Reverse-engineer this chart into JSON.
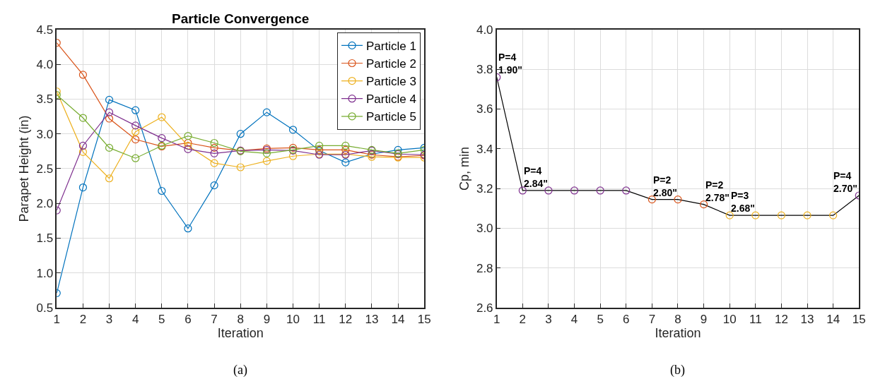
{
  "chart_data": [
    {
      "type": "line",
      "title": "Particle Convergence",
      "xlabel": "Iteration",
      "ylabel": "Parapet Height (in)",
      "x": [
        1,
        2,
        3,
        4,
        5,
        6,
        7,
        8,
        9,
        10,
        11,
        12,
        13,
        14,
        15
      ],
      "series": [
        {
          "name": "Particle 1",
          "color": "#0072bd",
          "values": [
            0.71,
            2.23,
            3.49,
            3.34,
            2.18,
            1.64,
            2.26,
            3.0,
            3.31,
            3.06,
            2.76,
            2.59,
            2.71,
            2.77,
            2.8
          ]
        },
        {
          "name": "Particle 2",
          "color": "#d95319",
          "values": [
            4.31,
            3.85,
            3.22,
            2.92,
            2.82,
            2.87,
            2.8,
            2.76,
            2.79,
            2.8,
            2.77,
            2.77,
            2.7,
            2.67,
            2.69
          ]
        },
        {
          "name": "Particle 3",
          "color": "#edb120",
          "values": [
            3.61,
            2.74,
            2.36,
            3.03,
            3.24,
            2.83,
            2.58,
            2.52,
            2.61,
            2.68,
            2.71,
            2.71,
            2.67,
            2.66,
            2.66
          ]
        },
        {
          "name": "Particle 4",
          "color": "#7e2f8e",
          "values": [
            1.9,
            2.83,
            3.31,
            3.12,
            2.94,
            2.78,
            2.72,
            2.76,
            2.77,
            2.76,
            2.7,
            2.7,
            2.76,
            2.71,
            2.7
          ]
        },
        {
          "name": "Particle 5",
          "color": "#77ac30",
          "values": [
            3.56,
            3.23,
            2.8,
            2.65,
            2.83,
            2.97,
            2.87,
            2.75,
            2.72,
            2.77,
            2.83,
            2.83,
            2.77,
            2.72,
            2.77
          ]
        }
      ],
      "xlim": [
        1,
        15
      ],
      "xticks": [
        1,
        2,
        3,
        4,
        5,
        6,
        7,
        8,
        9,
        10,
        11,
        12,
        13,
        14,
        15
      ],
      "ylim": [
        0.5,
        4.5
      ],
      "yticks": [
        0.5,
        {
          "value": 1,
          "label": "1.0"
        },
        1.5,
        {
          "value": 2,
          "label": "2.0"
        },
        2.5,
        {
          "value": 3,
          "label": "3.0"
        },
        3.5,
        {
          "value": 4,
          "label": "4.0"
        },
        4.5
      ],
      "grid": true,
      "legend": "top right",
      "marker": "circle",
      "line_style": "solid",
      "annotations": [
        "(a)"
      ]
    },
    {
      "type": "line",
      "xlabel": "Iteration",
      "ylabel": "Cp, min",
      "x": [
        1,
        2,
        3,
        4,
        5,
        6,
        7,
        8,
        9,
        10,
        11,
        12,
        13,
        14,
        15
      ],
      "series": [
        {
          "color": "#000000",
          "colors": [
            "#7e2f8e",
            "#7e2f8e",
            "#7e2f8e",
            "#7e2f8e",
            "#7e2f8e",
            "#7e2f8e",
            "#d95319",
            "#d95319",
            "#d95319",
            "#edb120",
            "#edb120",
            "#edb120",
            "#edb120",
            "#edb120",
            "#7e2f8e"
          ],
          "values": [
            3.76,
            3.19,
            3.19,
            3.19,
            3.19,
            3.19,
            3.145,
            3.145,
            3.12,
            3.065,
            3.065,
            3.065,
            3.065,
            3.065,
            3.165
          ]
        }
      ],
      "xlim": [
        1,
        15
      ],
      "xticks": [
        1,
        2,
        3,
        4,
        5,
        6,
        7,
        8,
        9,
        10,
        11,
        12,
        13,
        14,
        15
      ],
      "ylim": [
        2.6,
        4.0
      ],
      "yticks": [
        2.6,
        2.8,
        {
          "value": 3,
          "label": "3.0"
        },
        3.2,
        3.4,
        3.6,
        3.8,
        {
          "value": 4,
          "label": "4.0"
        }
      ],
      "grid": true,
      "marker": "circle",
      "line_style": "solid",
      "annotations": [
        {
          "text": "P=4\n1.90\"",
          "x": 1,
          "y": 3.76
        },
        {
          "text": "P=4\n2.84\"",
          "x": 2,
          "y": 3.19
        },
        {
          "text": "P=2\n2.80\"",
          "x": 7,
          "y": 3.145
        },
        {
          "text": "P=2\n2.78\"",
          "x": 9,
          "y": 3.12
        },
        {
          "text": "P=3\n2.68\"",
          "x": 10,
          "y": 3.065
        },
        {
          "text": "P=4\n2.70\"",
          "x": 15,
          "y": 3.165
        },
        "(b)"
      ]
    }
  ]
}
